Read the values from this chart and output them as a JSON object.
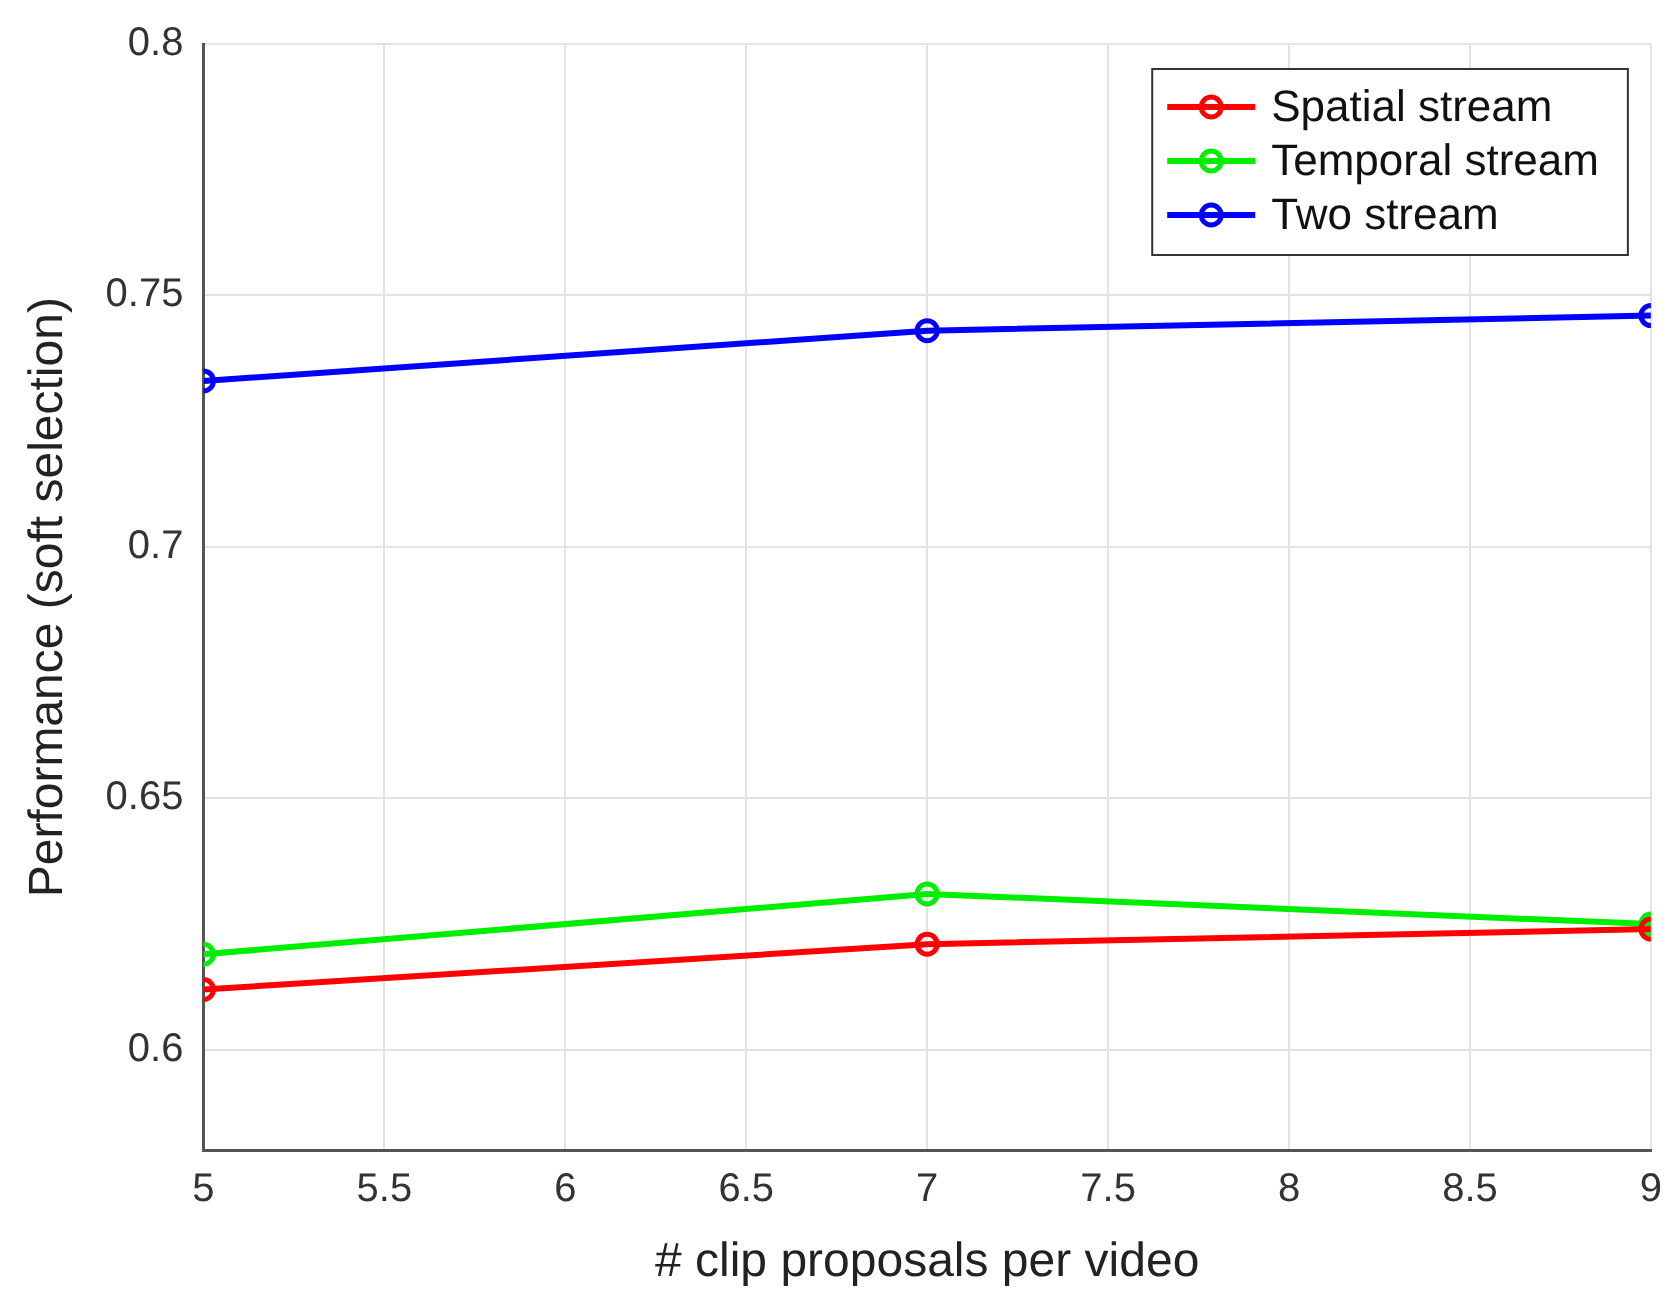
{
  "chart_data": {
    "type": "line",
    "xlabel": "# clip proposals per video",
    "ylabel": "Performance (soft selection)",
    "x": [
      5,
      7,
      9
    ],
    "series": [
      {
        "name": "Spatial stream",
        "color": "#ff0000",
        "values": [
          0.612,
          0.621,
          0.624
        ]
      },
      {
        "name": "Temporal stream",
        "color": "#00ee00",
        "values": [
          0.619,
          0.631,
          0.625
        ]
      },
      {
        "name": "Two stream",
        "color": "#0000ff",
        "values": [
          0.733,
          0.743,
          0.746
        ]
      }
    ],
    "xlim": [
      5,
      9
    ],
    "xticks": [
      5,
      5.5,
      6,
      6.5,
      7,
      7.5,
      8,
      8.5,
      9
    ],
    "ylim": [
      0.58,
      0.8
    ],
    "yticks": [
      0.6,
      0.65,
      0.7,
      0.75,
      0.8
    ],
    "grid": true,
    "legend": "top right",
    "marker": "circle",
    "line_style": "solid"
  }
}
